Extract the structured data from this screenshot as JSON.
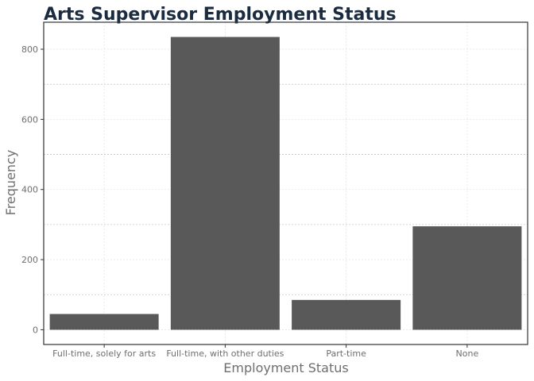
{
  "chart_data": {
    "type": "bar",
    "title": "Arts Supervisor Employment Status",
    "xlabel": "Employment Status",
    "ylabel": "Frequency",
    "categories": [
      "Full-time, solely for arts",
      "Full-time, with other duties",
      "Part-time",
      "None"
    ],
    "values": [
      45,
      835,
      85,
      295
    ],
    "ylim": [
      -42,
      877
    ],
    "y_ticks": [
      0,
      200,
      400,
      600,
      800
    ],
    "y_minor_ticks": [
      100,
      300,
      500,
      700
    ],
    "grid": true,
    "bar_color": "#595959"
  }
}
